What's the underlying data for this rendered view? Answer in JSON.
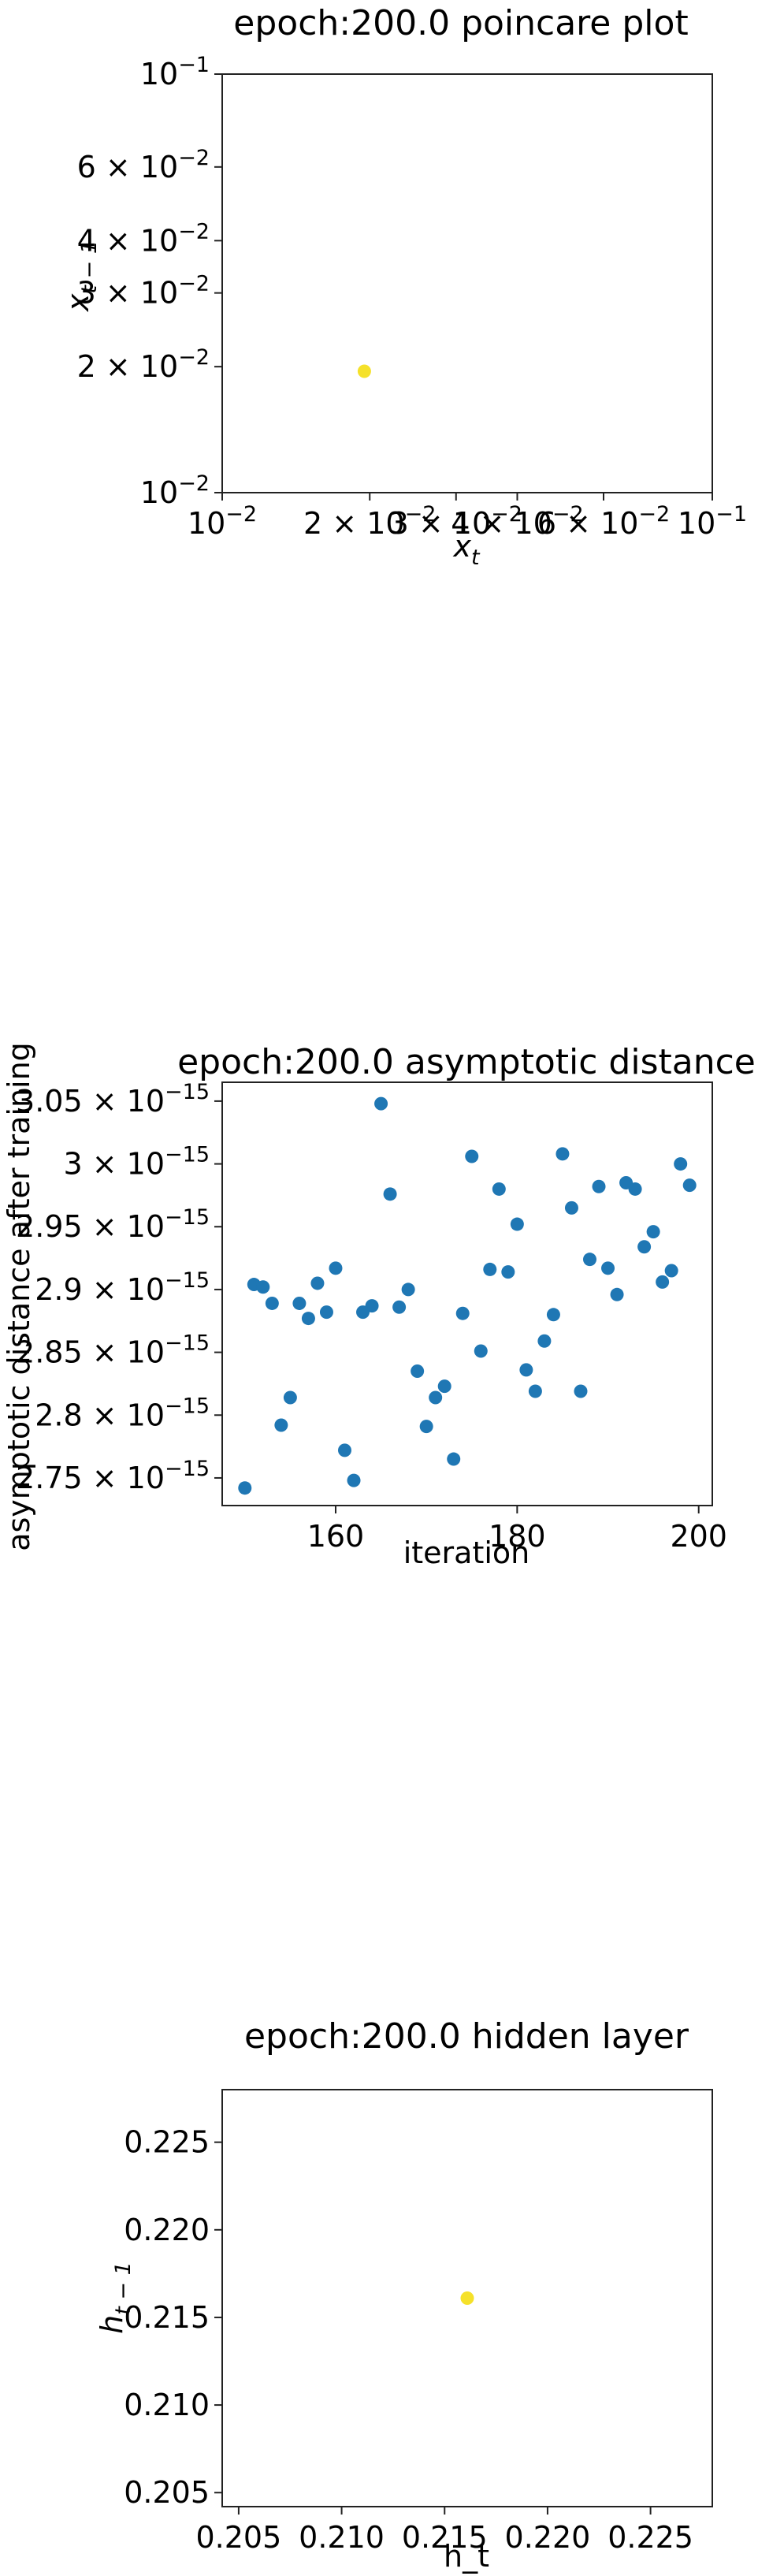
{
  "chart_data": [
    {
      "type": "scatter",
      "title": "epoch:200.0 poincare plot",
      "xlabel_base": "x",
      "xlabel_sub": "t",
      "ylabel_base": "x",
      "ylabel_sub": "t − 1",
      "xscale": "log",
      "yscale": "log",
      "xlim": [
        0.01,
        0.1
      ],
      "ylim": [
        0.01,
        0.1
      ],
      "xticks": [
        {
          "value": 0.01,
          "mant": "",
          "exp": "−2"
        },
        {
          "value": 0.02,
          "mant": "2 × ",
          "exp": "−2"
        },
        {
          "value": 0.03,
          "mant": "3 × ",
          "exp": "−2"
        },
        {
          "value": 0.04,
          "mant": "4 × ",
          "exp": "−2"
        },
        {
          "value": 0.06,
          "mant": "6 × ",
          "exp": "−2"
        },
        {
          "value": 0.1,
          "mant": "",
          "exp": "−1"
        }
      ],
      "yticks": [
        {
          "value": 0.01,
          "mant": "",
          "exp": "−2"
        },
        {
          "value": 0.02,
          "mant": "2 × ",
          "exp": "−2"
        },
        {
          "value": 0.03,
          "mant": "3 × ",
          "exp": "−2"
        },
        {
          "value": 0.04,
          "mant": "4 × ",
          "exp": "−2"
        },
        {
          "value": 0.06,
          "mant": "6 × ",
          "exp": "−2"
        },
        {
          "value": 0.1,
          "mant": "",
          "exp": "−1"
        }
      ],
      "points": [
        {
          "x": 0.0195,
          "y": 0.0195
        }
      ],
      "marker_color": "#f5e12a"
    },
    {
      "type": "scatter",
      "title": "epoch:200.0 asymptotic distance",
      "xlabel": "iteration",
      "ylabel": "asymptotic distance after training",
      "xlim": [
        147.5,
        201.5
      ],
      "ylim": [
        2.728e-15,
        3.065e-15
      ],
      "xticks": [
        {
          "value": 160,
          "label": "160"
        },
        {
          "value": 180,
          "label": "180"
        },
        {
          "value": 200,
          "label": "200"
        }
      ],
      "yticks": [
        {
          "value": 2.75e-15,
          "mant": "2.75 × ",
          "exp": "−15"
        },
        {
          "value": 2.8e-15,
          "mant": "2.8 × ",
          "exp": "−15"
        },
        {
          "value": 2.85e-15,
          "mant": "2.85 × ",
          "exp": "−15"
        },
        {
          "value": 2.9e-15,
          "mant": "2.9 × ",
          "exp": "−15"
        },
        {
          "value": 2.95e-15,
          "mant": "2.95 × ",
          "exp": "−15"
        },
        {
          "value": 3e-15,
          "mant": "3 × ",
          "exp": "−15"
        },
        {
          "value": 3.05e-15,
          "mant": "3.05 × ",
          "exp": "−15"
        }
      ],
      "x": [
        150,
        151,
        152,
        153,
        154,
        155,
        156,
        157,
        158,
        159,
        160,
        161,
        162,
        163,
        164,
        165,
        166,
        167,
        168,
        169,
        170,
        171,
        172,
        173,
        174,
        175,
        176,
        177,
        178,
        179,
        180,
        181,
        182,
        183,
        184,
        185,
        186,
        187,
        188,
        189,
        190,
        191,
        192,
        193,
        194,
        195,
        196,
        197,
        198,
        199
      ],
      "y": [
        2.742e-15,
        2.904e-15,
        2.902e-15,
        2.889e-15,
        2.792e-15,
        2.814e-15,
        2.889e-15,
        2.877e-15,
        2.905e-15,
        2.882e-15,
        2.917e-15,
        2.772e-15,
        2.748e-15,
        2.882e-15,
        2.887e-15,
        3.048e-15,
        2.976e-15,
        2.886e-15,
        2.9e-15,
        2.835e-15,
        2.791e-15,
        2.814e-15,
        2.823e-15,
        2.765e-15,
        2.881e-15,
        3.006e-15,
        2.851e-15,
        2.916e-15,
        2.98e-15,
        2.914e-15,
        2.952e-15,
        2.836e-15,
        2.819e-15,
        2.859e-15,
        2.88e-15,
        3.008e-15,
        2.965e-15,
        2.819e-15,
        2.924e-15,
        2.982e-15,
        2.917e-15,
        2.896e-15,
        2.985e-15,
        2.98e-15,
        2.934e-15,
        2.946e-15,
        2.906e-15,
        2.915e-15,
        3e-15,
        2.983e-15
      ],
      "marker_color": "#1f77b4"
    },
    {
      "type": "scatter",
      "title": "epoch:200.0 hidden layer",
      "xlabel": "h_t",
      "ylabel_base": "h",
      "ylabel_sub": "t − 1",
      "xlim": [
        0.2042,
        0.228
      ],
      "ylim": [
        0.2042,
        0.228
      ],
      "xticks": [
        {
          "value": 0.205,
          "label": "0.205"
        },
        {
          "value": 0.21,
          "label": "0.210"
        },
        {
          "value": 0.215,
          "label": "0.215"
        },
        {
          "value": 0.22,
          "label": "0.220"
        },
        {
          "value": 0.225,
          "label": "0.225"
        }
      ],
      "yticks": [
        {
          "value": 0.205,
          "label": "0.205"
        },
        {
          "value": 0.21,
          "label": "0.210"
        },
        {
          "value": 0.215,
          "label": "0.215"
        },
        {
          "value": 0.22,
          "label": "0.220"
        },
        {
          "value": 0.225,
          "label": "0.225"
        }
      ],
      "points": [
        {
          "x": 0.2161,
          "y": 0.2161
        }
      ],
      "marker_color": "#f5e12a"
    }
  ]
}
